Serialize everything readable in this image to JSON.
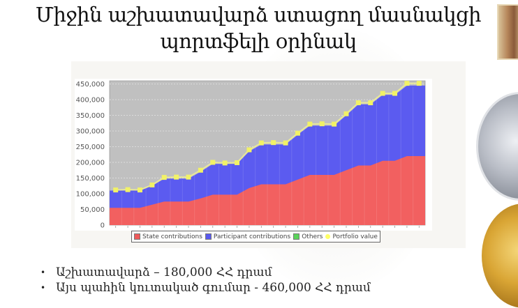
{
  "slide": {
    "title_line1": "Միջին աշխատավարձ ստացող մասնակցի",
    "title_line2": "պորտֆելի օրինակ",
    "bullets": [
      "Աշխատավարձ – 180,000 ՀՀ դրամ",
      "Այս պահին կուտակած գումար - 460,000 ՀՀ դրամ"
    ]
  },
  "legend": {
    "items": [
      {
        "label": "State contributions",
        "color": "#ef5b5b",
        "shape": "square"
      },
      {
        "label": "Participant contributions",
        "color": "#5959ef",
        "shape": "square"
      },
      {
        "label": "Others",
        "color": "#5bd35b",
        "shape": "square"
      },
      {
        "label": "Portfolio value",
        "color": "#ffff66",
        "shape": "circle"
      }
    ]
  },
  "colors": {
    "plot_bg": "#c0c0c0",
    "state": "#f26060",
    "participant": "#5b5bf0",
    "portfolio_marker": "#f2f266",
    "portfolio_line": "#e8e89a"
  },
  "chart_data": {
    "type": "area",
    "stacked": true,
    "title": "",
    "xlabel": "",
    "ylabel": "",
    "ylim": [
      0,
      450000
    ],
    "yticks": [
      0,
      50000,
      100000,
      150000,
      200000,
      250000,
      300000,
      350000,
      400000,
      450000
    ],
    "ytick_labels": [
      "0",
      "50,000",
      "100,000",
      "150,000",
      "200,000",
      "250,000",
      "300,000",
      "350,000",
      "400,000",
      "450,000"
    ],
    "grid": true,
    "legend_position": "bottom",
    "x": [
      1,
      2,
      3,
      4,
      5,
      6,
      7,
      8,
      9,
      10,
      11,
      12,
      13,
      14,
      15,
      16,
      17,
      18,
      19,
      20,
      21,
      22,
      23,
      24,
      25,
      26
    ],
    "series": [
      {
        "name": "State contributions",
        "type": "area",
        "values": [
          55000,
          55000,
          55000,
          65000,
          75000,
          75000,
          75000,
          85000,
          97000,
          97000,
          97000,
          118000,
          130000,
          130000,
          130000,
          145000,
          160000,
          160000,
          160000,
          175000,
          190000,
          190000,
          205000,
          205000,
          220000,
          220000
        ]
      },
      {
        "name": "Participant contributions",
        "type": "area",
        "values": [
          55000,
          55000,
          55000,
          60000,
          73000,
          73000,
          73000,
          85000,
          98000,
          98000,
          98000,
          117000,
          127000,
          127000,
          127000,
          143000,
          157000,
          157000,
          157000,
          175000,
          195000,
          195000,
          210000,
          210000,
          225000,
          225000
        ]
      },
      {
        "name": "Others",
        "type": "area",
        "values": [
          0,
          0,
          0,
          0,
          0,
          0,
          0,
          0,
          0,
          0,
          0,
          0,
          0,
          0,
          0,
          0,
          0,
          0,
          0,
          0,
          0,
          0,
          0,
          0,
          0,
          0
        ]
      },
      {
        "name": "Portfolio value",
        "type": "line",
        "values": [
          112000,
          113000,
          112000,
          128000,
          152000,
          153000,
          153000,
          175000,
          200000,
          198000,
          199000,
          240000,
          262000,
          263000,
          262000,
          293000,
          322000,
          323000,
          322000,
          355000,
          390000,
          390000,
          420000,
          420000,
          452000,
          452000
        ]
      }
    ]
  }
}
